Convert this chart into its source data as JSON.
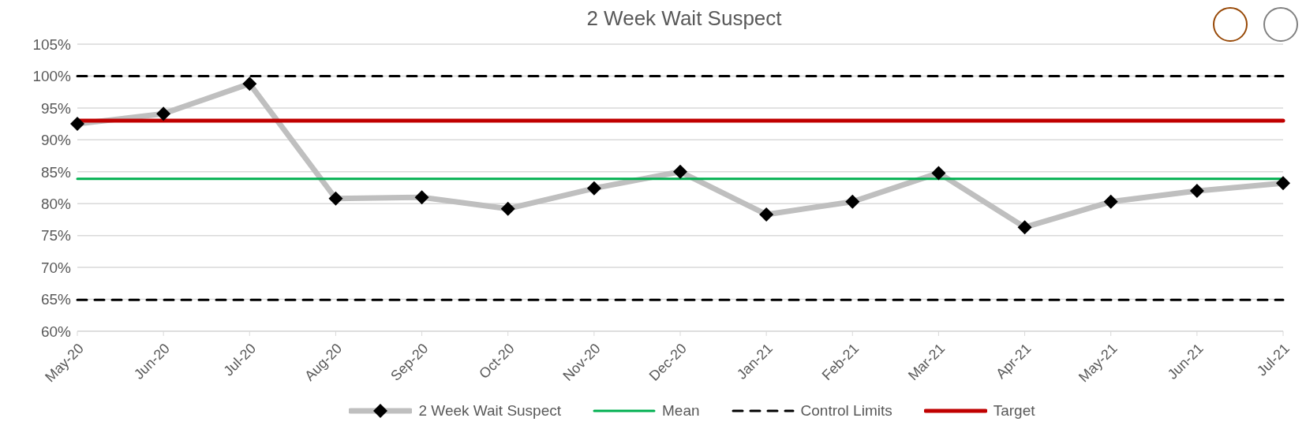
{
  "chart_data": {
    "type": "line",
    "title": "2 Week Wait Suspect",
    "categories": [
      "May-20",
      "Jun-20",
      "Jul-20",
      "Aug-20",
      "Sep-20",
      "Oct-20",
      "Nov-20",
      "Dec-20",
      "Jan-21",
      "Feb-21",
      "Mar-21",
      "Apr-21",
      "May-21",
      "Jun-21",
      "Jul-21"
    ],
    "series": [
      {
        "name": "2 Week Wait Suspect",
        "color": "#bfbfbf",
        "marker": "diamond",
        "line_style": "solid",
        "values": [
          92.5,
          94.1,
          98.8,
          80.8,
          81.0,
          79.2,
          82.4,
          85.0,
          78.3,
          80.3,
          84.8,
          76.3,
          80.3,
          82.0,
          83.2
        ]
      },
      {
        "name": "Mean",
        "color": "#00b050",
        "marker": "none",
        "line_style": "solid",
        "values": [
          83.9,
          83.9,
          83.9,
          83.9,
          83.9,
          83.9,
          83.9,
          83.9,
          83.9,
          83.9,
          83.9,
          83.9,
          83.9,
          83.9,
          83.9
        ]
      },
      {
        "name": "Control Limits",
        "color": "#000000",
        "marker": "none",
        "line_style": "dashed",
        "values": [
          100,
          100,
          100,
          100,
          100,
          100,
          100,
          100,
          100,
          100,
          100,
          100,
          100,
          100,
          100
        ]
      },
      {
        "color": "#000000",
        "marker": "none",
        "line_style": "dashed",
        "values": [
          64.9,
          64.9,
          64.9,
          64.9,
          64.9,
          64.9,
          64.9,
          64.9,
          64.9,
          64.9,
          64.9,
          64.9,
          64.9,
          64.9,
          64.9
        ]
      },
      {
        "name": "Target",
        "color": "#c00000",
        "marker": "none",
        "line_style": "solid",
        "values": [
          93,
          93,
          93,
          93,
          93,
          93,
          93,
          93,
          93,
          93,
          93,
          93,
          93,
          93,
          93
        ]
      }
    ],
    "ylim": [
      60,
      105
    ],
    "yticks": [
      {
        "value": 60,
        "label": "60%"
      },
      {
        "value": 65,
        "label": "65%"
      },
      {
        "value": 70,
        "label": "70%"
      },
      {
        "value": 75,
        "label": "75%"
      },
      {
        "value": 80,
        "label": "80%"
      },
      {
        "value": 85,
        "label": "85%"
      },
      {
        "value": 90,
        "label": "90%"
      },
      {
        "value": 95,
        "label": "95%"
      },
      {
        "value": 100,
        "label": "100%"
      },
      {
        "value": 105,
        "label": "105%"
      }
    ],
    "grid": "y",
    "legend": "bottom"
  }
}
